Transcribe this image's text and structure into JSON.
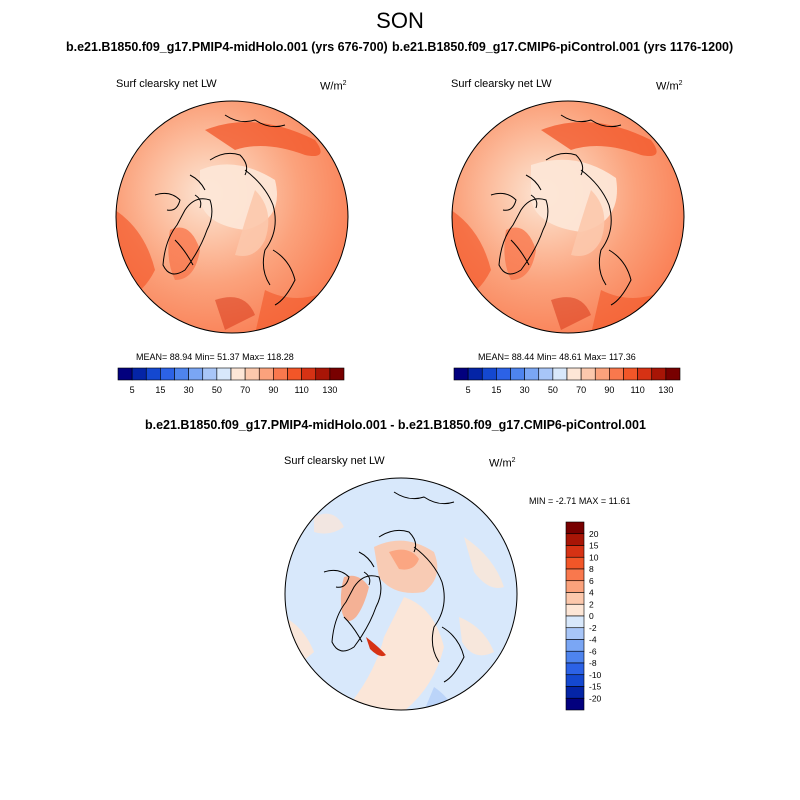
{
  "figure": {
    "season": "SON",
    "variable": "Surf clearsky net LW",
    "units_base": "W/m",
    "units_sup": "2"
  },
  "panels": [
    {
      "title": "b.e21.B1850.f09_g17.PMIP4-midHolo.001 (yrs 676-700)",
      "stats": {
        "mean": "88.94",
        "min": "51.37",
        "max": "118.28"
      }
    },
    {
      "title": "b.e21.B1850.f09_g17.CMIP6-piControl.001 (yrs 1176-1200)",
      "stats": {
        "mean": "88.44",
        "min": "48.61",
        "max": "117.36"
      }
    },
    {
      "title": "b.e21.B1850.f09_g17.PMIP4-midHolo.001 - b.e21.B1850.f09_g17.CMIP6-piControl.001",
      "stats": {
        "min": "-2.71",
        "max": "11.61"
      }
    }
  ],
  "labels": {
    "mean": "MEAN=",
    "min": "Min=",
    "max": "Max=",
    "diff_min": "MIN =",
    "diff_max": "MAX ="
  },
  "chart_data": [
    {
      "type": "heatmap",
      "subtype": "polar-stereographic contour map (North Pole)",
      "title": "b.e21.B1850.f09_g17.PMIP4-midHolo.001 (yrs 676-700)",
      "colorbar": {
        "orientation": "horizontal",
        "tick_labels": [
          "5",
          "15",
          "30",
          "50",
          "70",
          "90",
          "110",
          "130"
        ],
        "colors": [
          "#02007e",
          "#0424a6",
          "#1448d0",
          "#2c62e6",
          "#4e84ee",
          "#7aa6f4",
          "#a8c6f8",
          "#d8e8fb",
          "#fde6d6",
          "#fcc8ac",
          "#fba27c",
          "#f9784d",
          "#f25628",
          "#d63214",
          "#a81506",
          "#780000"
        ]
      }
    },
    {
      "type": "heatmap",
      "subtype": "polar-stereographic contour map (North Pole)",
      "title": "b.e21.B1850.f09_g17.CMIP6-piControl.001 (yrs 1176-1200)",
      "colorbar": {
        "orientation": "horizontal",
        "tick_labels": [
          "5",
          "15",
          "30",
          "50",
          "70",
          "90",
          "110",
          "130"
        ],
        "colors": [
          "#02007e",
          "#0424a6",
          "#1448d0",
          "#2c62e6",
          "#4e84ee",
          "#7aa6f4",
          "#a8c6f8",
          "#d8e8fb",
          "#fde6d6",
          "#fcc8ac",
          "#fba27c",
          "#f9784d",
          "#f25628",
          "#d63214",
          "#a81506",
          "#780000"
        ]
      }
    },
    {
      "type": "heatmap",
      "subtype": "polar-stereographic difference map (North Pole)",
      "title": "b.e21.B1850.f09_g17.PMIP4-midHolo.001 - b.e21.B1850.f09_g17.CMIP6-piControl.001",
      "colorbar": {
        "orientation": "vertical",
        "tick_labels": [
          "20",
          "15",
          "10",
          "8",
          "6",
          "4",
          "2",
          "0",
          "-2",
          "-4",
          "-6",
          "-8",
          "-10",
          "-15",
          "-20"
        ],
        "colors": [
          "#780000",
          "#a81506",
          "#d63214",
          "#f25628",
          "#f9784d",
          "#fba27c",
          "#fcc8ac",
          "#fde6d6",
          "#d8e8fb",
          "#a8c6f8",
          "#7aa6f4",
          "#4e84ee",
          "#2c62e6",
          "#1448d0",
          "#0424a6",
          "#02007e"
        ]
      }
    }
  ]
}
